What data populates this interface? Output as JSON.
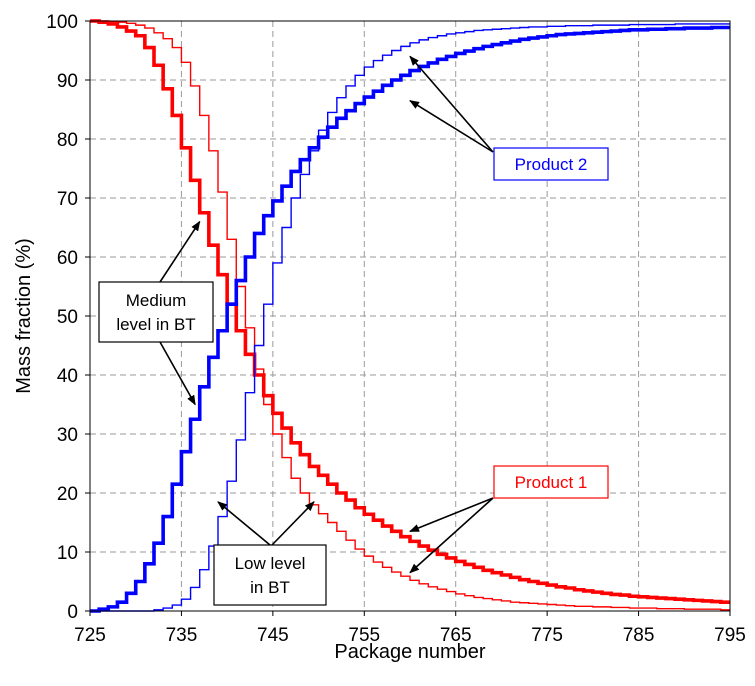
{
  "chart_data": {
    "type": "line",
    "step": true,
    "xlabel": "Package number",
    "ylabel": "Mass fraction (%)",
    "xlim": [
      725,
      795
    ],
    "ylim": [
      0,
      100
    ],
    "xticks": [
      725,
      735,
      745,
      755,
      765,
      775,
      785,
      795
    ],
    "yticks": [
      0,
      10,
      20,
      30,
      40,
      50,
      60,
      70,
      80,
      90,
      100
    ],
    "grid": "dashed",
    "series": [
      {
        "label_ref": "Product 1",
        "level_ref": "Medium level in BT",
        "color": "#ff0000",
        "weight": "thick",
        "x": [
          725,
          726,
          727,
          728,
          729,
          730,
          731,
          732,
          733,
          734,
          735,
          736,
          737,
          738,
          739,
          740,
          741,
          742,
          743,
          744,
          745,
          746,
          747,
          748,
          749,
          750,
          751,
          752,
          753,
          754,
          755,
          756,
          757,
          758,
          759,
          760,
          761,
          762,
          763,
          764,
          765,
          766,
          767,
          768,
          769,
          770,
          771,
          772,
          773,
          774,
          775,
          776,
          777,
          778,
          779,
          780,
          781,
          782,
          783,
          784,
          785,
          786,
          787,
          788,
          789,
          790,
          791,
          792,
          793,
          794,
          795
        ],
        "y": [
          100,
          99.8,
          99.5,
          99,
          98.3,
          97.5,
          95.5,
          92.5,
          88.5,
          84,
          78.5,
          73,
          67.5,
          62,
          57,
          52,
          47.5,
          43.5,
          40,
          36.5,
          33.5,
          31,
          28.5,
          26.5,
          24.5,
          23,
          21.5,
          20,
          18.8,
          17.5,
          16.4,
          15.4,
          14.4,
          13.5,
          12.6,
          11.8,
          11,
          10.3,
          9.6,
          9,
          8.4,
          7.9,
          7.4,
          6.9,
          6.5,
          6.1,
          5.7,
          5.3,
          5,
          4.7,
          4.4,
          4.1,
          3.9,
          3.6,
          3.4,
          3.2,
          3,
          2.8,
          2.7,
          2.5,
          2.4,
          2.3,
          2.2,
          2.1,
          2,
          1.9,
          1.8,
          1.7,
          1.6,
          1.5,
          1.5
        ]
      },
      {
        "label_ref": "Product 1",
        "level_ref": "Low level in BT",
        "color": "#ff0000",
        "weight": "thin",
        "x": [
          725,
          726,
          727,
          728,
          729,
          730,
          731,
          732,
          733,
          734,
          735,
          736,
          737,
          738,
          739,
          740,
          741,
          742,
          743,
          744,
          745,
          746,
          747,
          748,
          749,
          750,
          751,
          752,
          753,
          754,
          755,
          756,
          757,
          758,
          759,
          760,
          761,
          762,
          763,
          764,
          765,
          766,
          767,
          768,
          769,
          770,
          771,
          772,
          773,
          774,
          775,
          776,
          777,
          778,
          779,
          780,
          781,
          782,
          783,
          784,
          785,
          786,
          787,
          788,
          789,
          790,
          791,
          792,
          793,
          794,
          795
        ],
        "y": [
          100,
          100,
          99.9,
          99.8,
          99.6,
          99.3,
          98.8,
          98,
          97,
          95.5,
          93,
          89,
          84,
          78,
          71,
          63,
          55,
          48,
          41,
          35,
          30,
          26,
          22.5,
          20,
          18,
          16.5,
          15,
          13.5,
          12,
          10.5,
          9.3,
          8.3,
          7.4,
          6.6,
          5.9,
          5.2,
          4.6,
          4.1,
          3.7,
          3.3,
          2.9,
          2.6,
          2.3,
          2.1,
          1.9,
          1.7,
          1.5,
          1.4,
          1.3,
          1.2,
          1.1,
          1,
          0.9,
          0.8,
          0.8,
          0.7,
          0.7,
          0.6,
          0.6,
          0.5,
          0.5,
          0.5,
          0.4,
          0.4,
          0.4,
          0.3,
          0.3,
          0.3,
          0.3,
          0.2,
          0.2
        ]
      },
      {
        "label_ref": "Product 2",
        "level_ref": "Medium level in BT",
        "color": "#0000ff",
        "weight": "thick",
        "x": [
          725,
          726,
          727,
          728,
          729,
          730,
          731,
          732,
          733,
          734,
          735,
          736,
          737,
          738,
          739,
          740,
          741,
          742,
          743,
          744,
          745,
          746,
          747,
          748,
          749,
          750,
          751,
          752,
          753,
          754,
          755,
          756,
          757,
          758,
          759,
          760,
          761,
          762,
          763,
          764,
          765,
          766,
          767,
          768,
          769,
          770,
          771,
          772,
          773,
          774,
          775,
          776,
          777,
          778,
          779,
          780,
          781,
          782,
          783,
          784,
          785,
          786,
          787,
          788,
          789,
          790,
          791,
          792,
          793,
          794,
          795
        ],
        "y": [
          0,
          0.3,
          0.7,
          1.5,
          3,
          5,
          8,
          11.5,
          16,
          21.5,
          27,
          32.5,
          38,
          43,
          47.5,
          52,
          56,
          60,
          64,
          67,
          69.5,
          72,
          74.5,
          76.5,
          78.5,
          80.3,
          82,
          83.5,
          84.8,
          86,
          87.1,
          88.1,
          89.1,
          90,
          90.8,
          91.6,
          92.3,
          92.9,
          93.5,
          94,
          94.5,
          94.9,
          95.3,
          95.7,
          96,
          96.3,
          96.6,
          96.9,
          97.1,
          97.3,
          97.5,
          97.7,
          97.8,
          97.9,
          98,
          98.1,
          98.2,
          98.3,
          98.4,
          98.5,
          98.5,
          98.6,
          98.6,
          98.7,
          98.7,
          98.8,
          98.8,
          98.8,
          98.9,
          98.9,
          98.9
        ]
      },
      {
        "label_ref": "Product 2",
        "level_ref": "Low level in BT",
        "color": "#0000ff",
        "weight": "thin",
        "x": [
          725,
          726,
          727,
          728,
          729,
          730,
          731,
          732,
          733,
          734,
          735,
          736,
          737,
          738,
          739,
          740,
          741,
          742,
          743,
          744,
          745,
          746,
          747,
          748,
          749,
          750,
          751,
          752,
          753,
          754,
          755,
          756,
          757,
          758,
          759,
          760,
          761,
          762,
          763,
          764,
          765,
          766,
          767,
          768,
          769,
          770,
          771,
          772,
          773,
          774,
          775,
          776,
          777,
          778,
          779,
          780,
          781,
          782,
          783,
          784,
          785,
          786,
          787,
          788,
          789,
          790,
          791,
          792,
          793,
          794,
          795
        ],
        "y": [
          0,
          0,
          0,
          0,
          0,
          0,
          0,
          0.2,
          0.5,
          1,
          2,
          4,
          7,
          11,
          16,
          22,
          29,
          37,
          45,
          52,
          59,
          65,
          70,
          74,
          78,
          81.5,
          84.5,
          87,
          89,
          90.8,
          92.2,
          93.3,
          94.2,
          95,
          95.7,
          96.3,
          96.8,
          97.2,
          97.5,
          97.8,
          98,
          98.2,
          98.4,
          98.5,
          98.6,
          98.7,
          98.8,
          98.9,
          99,
          99,
          99.1,
          99.1,
          99.2,
          99.2,
          99.2,
          99.3,
          99.3,
          99.3,
          99.3,
          99.4,
          99.4,
          99.4,
          99.4,
          99.4,
          99.5,
          99.5,
          99.5,
          99.5,
          99.5,
          99.5,
          99.5
        ]
      }
    ],
    "annotations": {
      "product2": {
        "text": "Product 2",
        "color": "#0000ff",
        "arrow_targets": [
          [
            760,
            94
          ],
          [
            760,
            86.5
          ]
        ]
      },
      "product1": {
        "text": "Product 1",
        "color": "#ff0000",
        "arrow_targets": [
          [
            760,
            13.5
          ],
          [
            760,
            6.5
          ]
        ]
      },
      "medium": {
        "lines": [
          "Medium",
          "level in BT"
        ],
        "color": "#000000",
        "arrow_targets": [
          [
            737,
            66
          ],
          [
            736.5,
            35
          ]
        ]
      },
      "low": {
        "lines": [
          "Low level",
          "in BT"
        ],
        "color": "#000000",
        "arrow_targets": [
          [
            739,
            18.5
          ],
          [
            749.5,
            18.5
          ]
        ]
      }
    }
  }
}
